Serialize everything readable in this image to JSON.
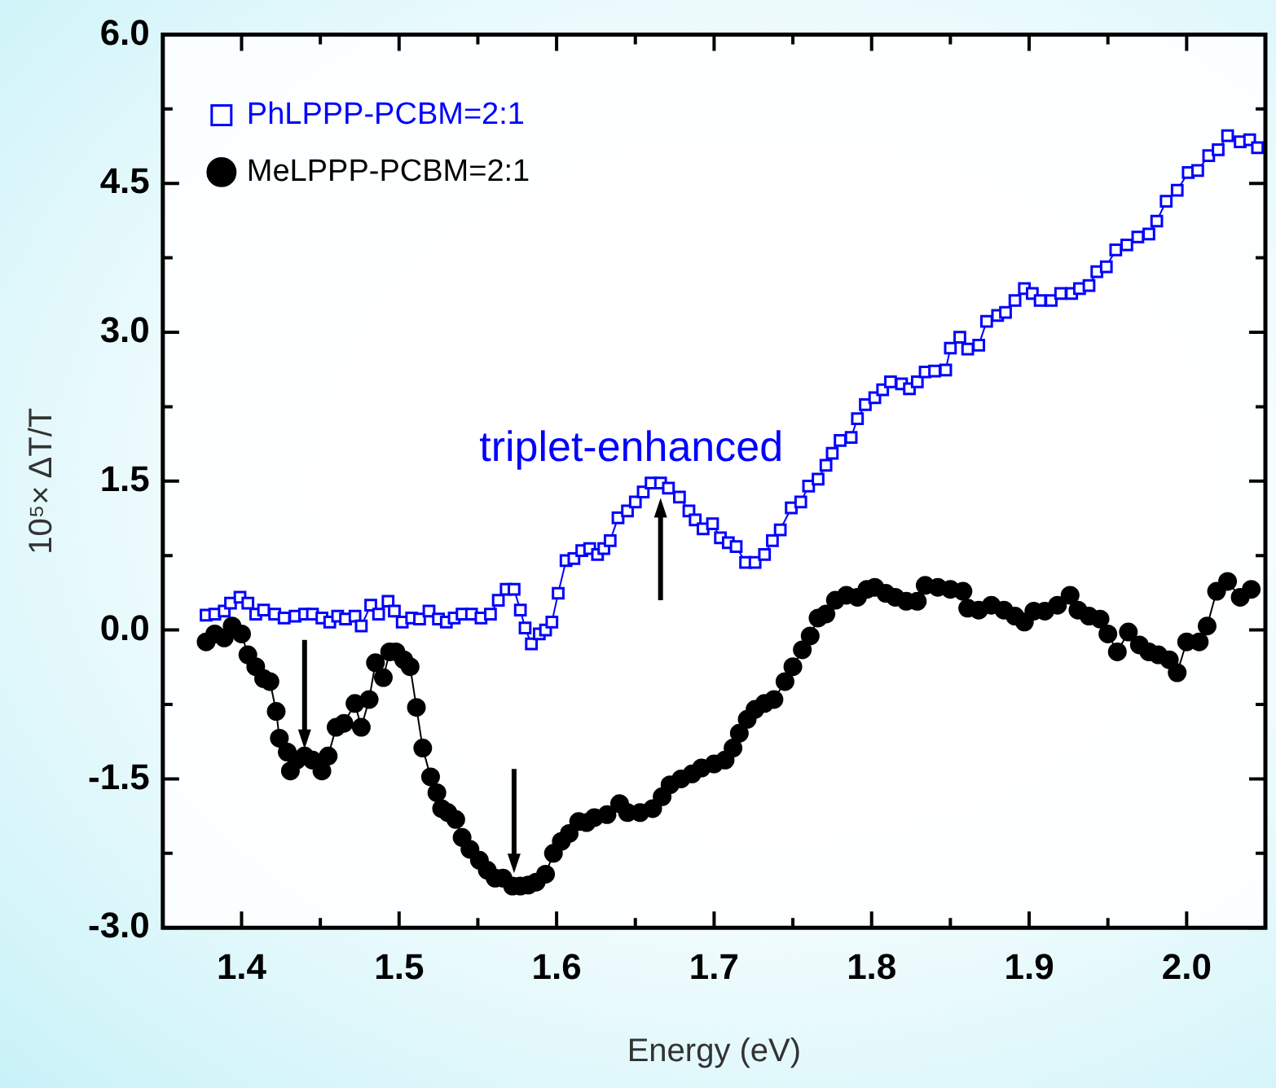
{
  "chart_data": {
    "type": "line",
    "xlabel": "Energy (eV)",
    "ylabel": "10⁵× ΔT/T",
    "xlim": [
      1.35,
      2.05
    ],
    "xticks": [
      {
        "value": 1.4,
        "label": "1.4"
      },
      {
        "value": 1.45,
        "label": null
      },
      {
        "value": 1.5,
        "label": "1.5"
      },
      {
        "value": 1.55,
        "label": null
      },
      {
        "value": 1.6,
        "label": "1.6"
      },
      {
        "value": 1.65,
        "label": null
      },
      {
        "value": 1.7,
        "label": "1.7"
      },
      {
        "value": 1.75,
        "label": null
      },
      {
        "value": 1.8,
        "label": "1.8"
      },
      {
        "value": 1.85,
        "label": null
      },
      {
        "value": 1.9,
        "label": "1.9"
      },
      {
        "value": 1.95,
        "label": null
      },
      {
        "value": 2.0,
        "label": "2.0"
      }
    ],
    "ylim": [
      -3,
      6
    ],
    "yticks": [
      {
        "value": -3,
        "label": "-3.0"
      },
      {
        "value": -2.25,
        "label": null
      },
      {
        "value": -1.5,
        "label": "-1.5"
      },
      {
        "value": -0.75,
        "label": null
      },
      {
        "value": 0,
        "label": "0.0"
      },
      {
        "value": 0.75,
        "label": null
      },
      {
        "value": 1.5,
        "label": "1.5"
      },
      {
        "value": 2.25,
        "label": null
      },
      {
        "value": 3,
        "label": "3.0"
      },
      {
        "value": 3.75,
        "label": null
      },
      {
        "value": 4.5,
        "label": "4.5"
      },
      {
        "value": 5.25,
        "label": null
      },
      {
        "value": 6,
        "label": "6.0"
      }
    ],
    "legend": "top left",
    "grid": false,
    "line_style": "solid",
    "annotations": [
      {
        "text": "triplet-enhanced",
        "x": 1.666,
        "y": 1.48
      }
    ],
    "series": [
      {
        "name": "PhLPPP-PCBM=2:1",
        "color": "#0000ff",
        "marker": "square",
        "x": [
          1.3775,
          1.383,
          1.389,
          1.393,
          1.399,
          1.404,
          1.409,
          1.414,
          1.421,
          1.427,
          1.434,
          1.44,
          1.445,
          1.451,
          1.456,
          1.461,
          1.466,
          1.472,
          1.476,
          1.482,
          1.487,
          1.493,
          1.497,
          1.502,
          1.508,
          1.513,
          1.519,
          1.525,
          1.53,
          1.535,
          1.54,
          1.546,
          1.552,
          1.558,
          1.563,
          1.568,
          1.573,
          1.577,
          1.58,
          1.584,
          1.589,
          1.593,
          1.597,
          1.601,
          1.606,
          1.611,
          1.616,
          1.621,
          1.626,
          1.63,
          1.634,
          1.639,
          1.645,
          1.65,
          1.655,
          1.66,
          1.666,
          1.671,
          1.678,
          1.684,
          1.688,
          1.693,
          1.699,
          1.704,
          1.709,
          1.714,
          1.72,
          1.726,
          1.732,
          1.737,
          1.742,
          1.749,
          1.755,
          1.76,
          1.766,
          1.771,
          1.775,
          1.78,
          1.787,
          1.791,
          1.796,
          1.802,
          1.807,
          1.812,
          1.819,
          1.824,
          1.829,
          1.834,
          1.84,
          1.847,
          1.85,
          1.856,
          1.861,
          1.868,
          1.873,
          1.88,
          1.885,
          1.891,
          1.897,
          1.902,
          1.907,
          1.914,
          1.92,
          1.927,
          1.932,
          1.938,
          1.943,
          1.949,
          1.955,
          1.962,
          1.969,
          1.976,
          1.981,
          1.987,
          1.994,
          2.001,
          2.007,
          2.014,
          2.02,
          2.026,
          2.034,
          2.04,
          2.045
        ],
        "values": [
          0.15,
          0.16,
          0.19,
          0.27,
          0.33,
          0.27,
          0.16,
          0.2,
          0.16,
          0.12,
          0.14,
          0.16,
          0.16,
          0.12,
          0.08,
          0.14,
          0.11,
          0.14,
          0.04,
          0.25,
          0.16,
          0.29,
          0.19,
          0.08,
          0.12,
          0.11,
          0.19,
          0.11,
          0.08,
          0.12,
          0.16,
          0.16,
          0.12,
          0.16,
          0.3,
          0.41,
          0.41,
          0.2,
          0.02,
          -0.14,
          -0.04,
          0.0,
          0.08,
          0.37,
          0.7,
          0.72,
          0.8,
          0.82,
          0.76,
          0.82,
          0.9,
          1.13,
          1.2,
          1.29,
          1.39,
          1.48,
          1.48,
          1.43,
          1.34,
          1.2,
          1.11,
          1.02,
          1.07,
          0.93,
          0.88,
          0.84,
          0.68,
          0.68,
          0.76,
          0.9,
          1.01,
          1.23,
          1.29,
          1.45,
          1.52,
          1.66,
          1.78,
          1.91,
          1.94,
          2.13,
          2.27,
          2.34,
          2.42,
          2.5,
          2.48,
          2.43,
          2.5,
          2.6,
          2.61,
          2.62,
          2.84,
          2.95,
          2.83,
          2.87,
          3.11,
          3.17,
          3.2,
          3.32,
          3.44,
          3.39,
          3.32,
          3.32,
          3.39,
          3.39,
          3.44,
          3.47,
          3.61,
          3.66,
          3.83,
          3.88,
          3.96,
          3.99,
          4.12,
          4.32,
          4.43,
          4.61,
          4.63,
          4.78,
          4.84,
          4.98,
          4.92,
          4.94,
          4.86
        ]
      },
      {
        "name": "MeLPPP-PCBM=2:1",
        "color": "#000000",
        "marker": "circle",
        "x": [
          1.3775,
          1.383,
          1.389,
          1.394,
          1.4,
          1.404,
          1.409,
          1.414,
          1.418,
          1.422,
          1.424,
          1.429,
          1.431,
          1.435,
          1.44,
          1.445,
          1.451,
          1.455,
          1.46,
          1.465,
          1.472,
          1.476,
          1.481,
          1.485,
          1.49,
          1.494,
          1.498,
          1.503,
          1.507,
          1.511,
          1.515,
          1.52,
          1.524,
          1.527,
          1.531,
          1.536,
          1.54,
          1.545,
          1.551,
          1.556,
          1.561,
          1.566,
          1.572,
          1.577,
          1.582,
          1.587,
          1.593,
          1.598,
          1.603,
          1.608,
          1.614,
          1.619,
          1.624,
          1.632,
          1.64,
          1.645,
          1.653,
          1.661,
          1.667,
          1.672,
          1.679,
          1.686,
          1.692,
          1.7,
          1.707,
          1.712,
          1.716,
          1.721,
          1.726,
          1.732,
          1.738,
          1.745,
          1.75,
          1.756,
          1.761,
          1.766,
          1.771,
          1.777,
          1.784,
          1.791,
          1.797,
          1.802,
          1.809,
          1.815,
          1.822,
          1.829,
          1.834,
          1.842,
          1.85,
          1.858,
          1.861,
          1.868,
          1.876,
          1.884,
          1.891,
          1.897,
          1.903,
          1.91,
          1.918,
          1.926,
          1.931,
          1.938,
          1.945,
          1.95,
          1.956,
          1.963,
          1.97,
          1.976,
          1.982,
          1.989,
          1.994,
          2.0,
          2.008,
          2.013,
          2.019,
          2.026,
          2.034,
          2.041
        ],
        "values": [
          -0.12,
          -0.04,
          -0.08,
          0.04,
          -0.04,
          -0.25,
          -0.37,
          -0.49,
          -0.52,
          -0.82,
          -1.09,
          -1.23,
          -1.42,
          -1.31,
          -1.27,
          -1.31,
          -1.42,
          -1.27,
          -0.98,
          -0.94,
          -0.74,
          -0.98,
          -0.7,
          -0.33,
          -0.48,
          -0.22,
          -0.22,
          -0.3,
          -0.37,
          -0.78,
          -1.19,
          -1.48,
          -1.64,
          -1.8,
          -1.84,
          -1.91,
          -2.09,
          -2.21,
          -2.32,
          -2.42,
          -2.5,
          -2.5,
          -2.58,
          -2.58,
          -2.57,
          -2.54,
          -2.46,
          -2.25,
          -2.13,
          -2.05,
          -1.93,
          -1.94,
          -1.89,
          -1.86,
          -1.75,
          -1.84,
          -1.84,
          -1.8,
          -1.68,
          -1.56,
          -1.5,
          -1.45,
          -1.39,
          -1.35,
          -1.31,
          -1.19,
          -1.04,
          -0.9,
          -0.8,
          -0.74,
          -0.7,
          -0.52,
          -0.37,
          -0.2,
          -0.06,
          0.12,
          0.16,
          0.3,
          0.35,
          0.33,
          0.41,
          0.43,
          0.37,
          0.33,
          0.29,
          0.29,
          0.45,
          0.43,
          0.41,
          0.39,
          0.22,
          0.2,
          0.25,
          0.2,
          0.14,
          0.08,
          0.19,
          0.19,
          0.25,
          0.35,
          0.2,
          0.14,
          0.11,
          -0.04,
          -0.22,
          -0.02,
          -0.15,
          -0.22,
          -0.25,
          -0.3,
          -0.43,
          -0.12,
          -0.12,
          0.04,
          0.39,
          0.49,
          0.33,
          0.41
        ]
      }
    ]
  }
}
